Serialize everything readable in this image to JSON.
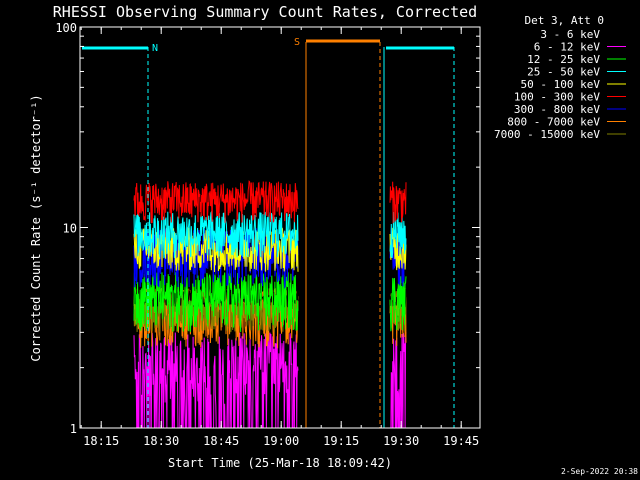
{
  "chart_data": {
    "type": "line",
    "title": "RHESSI Observing Summary Count Rates, Corrected",
    "xlabel": "Start Time (25-Mar-18 18:09:42)",
    "ylabel": "Corrected Count Rate (s⁻¹ detector⁻¹)",
    "yscale": "log",
    "ylim": [
      1,
      100
    ],
    "xlim_minutes_after_1809": [
      0,
      100
    ],
    "x_ticks": [
      "18:15",
      "18:30",
      "18:45",
      "19:00",
      "19:15",
      "19:30",
      "19:45"
    ],
    "y_ticks": [
      "1",
      "10",
      "100"
    ],
    "legend_title": "Det 3, Att 0",
    "legend_position": "right",
    "series": [
      {
        "name": "3 - 6 keV",
        "color": "#000000",
        "values": [
          4.0,
          5.0
        ]
      },
      {
        "name": "6 - 12 keV",
        "color": "#ff00ff",
        "values": [
          1.3,
          3.0
        ]
      },
      {
        "name": "12 - 25 keV",
        "color": "#00ff00",
        "values": [
          3.0,
          6.0
        ]
      },
      {
        "name": "25 - 50 keV",
        "color": "#00ffff",
        "values": [
          7.0,
          12.0
        ]
      },
      {
        "name": "50 - 100 keV",
        "color": "#ffff00",
        "values": [
          6.0,
          10.0
        ]
      },
      {
        "name": "100 - 300 keV",
        "color": "#ff0000",
        "values": [
          10.5,
          17.0
        ]
      },
      {
        "name": "300 - 800 keV",
        "color": "#0000ff",
        "values": [
          5.0,
          10.0
        ]
      },
      {
        "name": "800 - 7000 keV",
        "color": "#ff8000",
        "values": [
          2.5,
          5.0
        ]
      },
      {
        "name": "7000 - 15000 keV",
        "color": "#808000",
        "values": [
          3.0,
          5.0
        ]
      }
    ],
    "data_intervals": [
      [
        13.5,
        54.5
      ],
      [
        77.5,
        81.5
      ]
    ],
    "annotations": {
      "night_label": "N",
      "saa_label": "S",
      "night_bars": [
        [
          0,
          17
        ],
        [
          76,
          93.5
        ]
      ],
      "saa_bar": [
        56.5,
        75
      ],
      "cyan_lines": [
        0,
        17,
        76,
        93.5
      ],
      "orange_lines": [
        56.5,
        75
      ]
    },
    "date_stamp": "2-Sep-2022 20:38"
  }
}
